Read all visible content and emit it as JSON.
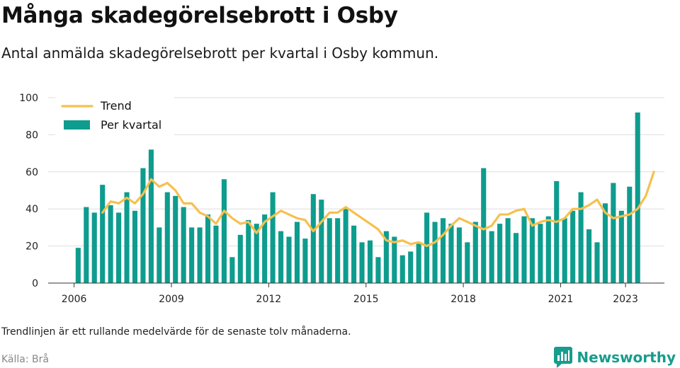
{
  "header": {
    "title": "Många skadegörelsebrott i Osby",
    "subtitle": "Antal anmälda skadegörelsebrott per kvartal i Osby kommun."
  },
  "footer": {
    "note": "Trendlinjen är ett rullande medelvärde för de senaste tolv månaderna.",
    "source": "Källa: Brå",
    "brand": "Newsworthy"
  },
  "colors": {
    "bars": "#0e9c8e",
    "trend": "#f6c04f",
    "grid": "#dddddd",
    "brand": "#189c8d"
  },
  "chart_data": {
    "type": "bar",
    "x_unit": "quarter",
    "start": "2006 Q1",
    "xlim": [
      2005.2,
      2024.2
    ],
    "ylim": [
      0,
      100
    ],
    "yticks": [
      0,
      20,
      40,
      60,
      80,
      100
    ],
    "xticks": [
      2006,
      2009,
      2012,
      2015,
      2018,
      2021,
      2023
    ],
    "legend_position": "top-left",
    "grid": true,
    "series": [
      {
        "name": "Per kvartal",
        "type": "bar",
        "values": [
          19,
          41,
          38,
          53,
          42,
          38,
          49,
          39,
          62,
          72,
          30,
          49,
          47,
          41,
          30,
          30,
          37,
          31,
          56,
          14,
          26,
          34,
          32,
          37,
          49,
          28,
          25,
          33,
          24,
          48,
          45,
          35,
          35,
          40,
          31,
          22,
          23,
          14,
          28,
          25,
          15,
          17,
          22,
          38,
          33,
          35,
          32,
          30,
          22,
          33,
          62,
          28,
          32,
          35,
          27,
          36,
          35,
          32,
          36,
          55,
          35,
          39,
          49,
          29,
          22,
          43,
          54,
          39,
          52,
          92
        ]
      },
      {
        "name": "Trend",
        "type": "line",
        "start_index": 3,
        "values": [
          38,
          44,
          43,
          46,
          43,
          48,
          56,
          52,
          54,
          50,
          43,
          43,
          38,
          36,
          32,
          39,
          35,
          32,
          33,
          27,
          33,
          36,
          39,
          37,
          35,
          34,
          28,
          33,
          38,
          38,
          41,
          38,
          35,
          32,
          29,
          23,
          22,
          23,
          21,
          22,
          20,
          22,
          26,
          31,
          35,
          33,
          31,
          29,
          31,
          37,
          37,
          39,
          40,
          31,
          33,
          34,
          33,
          35,
          40,
          40,
          42,
          45,
          38,
          35,
          36,
          37,
          40,
          47,
          60
        ]
      }
    ]
  }
}
